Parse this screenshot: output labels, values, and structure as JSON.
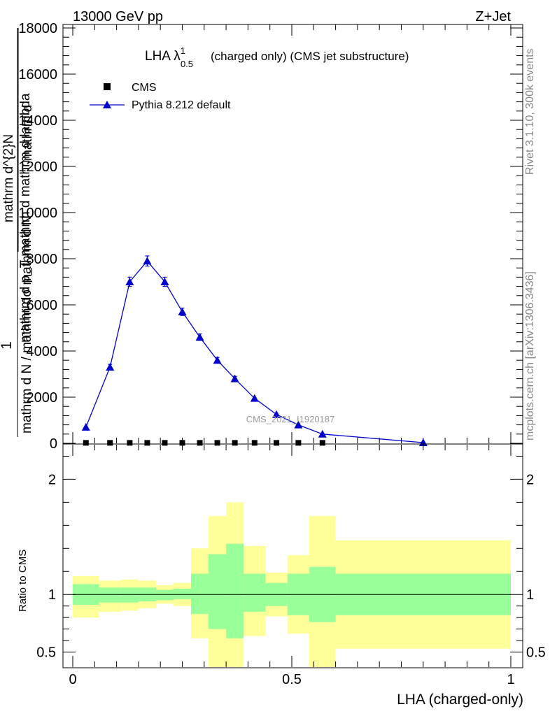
{
  "header": {
    "left": "13000 GeV pp",
    "right": "Z+Jet"
  },
  "side_labels": {
    "rivet": "Rivet 3.1.10,  300k events",
    "mcplots": "mcplots.cern.ch [arXiv:1306.3436]"
  },
  "colors": {
    "mc": "#0000cc",
    "data": "#000000",
    "band_inner": "#99ff99",
    "band_outer": "#ffff99"
  },
  "chart_data": [
    {
      "type": "line",
      "title_main": "LHA λ",
      "title_sup": "1",
      "title_sub": "0.5",
      "title_rest": "(charged only) (CMS jet substructure)",
      "watermark": "CMS_2021_I1920187",
      "ylabel_numerator": "1",
      "ylabel_denominator": "mathrm d N / mathrm dσ mathrm d N",
      "ylabel_stack": [
        "mathrm d",
        "mathrm d^{2}N",
        "mathrm d p_T mathrm d \\mathrm d\\lambda"
      ],
      "ylabel_lines": [
        "mathrm d",
        "mathrm d^{2}N",
        "mathrm d p_T mathrm d mathrm d lambda"
      ],
      "ylim": [
        0,
        18000
      ],
      "xlim": [
        0,
        1
      ],
      "yticks": [
        {
          "value": 0,
          "label": "0"
        },
        {
          "value": 2000,
          "label": "2000"
        },
        {
          "value": 4000,
          "label": "4000"
        },
        {
          "value": 6000,
          "label": "6000"
        },
        {
          "value": 8000,
          "label": "8000"
        },
        {
          "value": 10000,
          "label": "10000"
        },
        {
          "value": 12000,
          "label": "12000"
        },
        {
          "value": 14000,
          "label": "14000"
        },
        {
          "value": 16000,
          "label": "16000"
        },
        {
          "value": 18000,
          "label": "18000"
        }
      ],
      "legend": [
        {
          "name": "CMS",
          "marker": "square"
        },
        {
          "name": "Pythia 8.212 default",
          "marker": "triangle"
        }
      ],
      "series": [
        {
          "name": "Pythia 8.212 default",
          "x": [
            0.03,
            0.085,
            0.13,
            0.17,
            0.21,
            0.25,
            0.29,
            0.33,
            0.37,
            0.415,
            0.465,
            0.515,
            0.57,
            0.8
          ],
          "y": [
            700,
            3300,
            7000,
            7900,
            7000,
            5700,
            4600,
            3600,
            2800,
            1950,
            1250,
            800,
            400,
            30
          ],
          "err": [
            0,
            120,
            200,
            220,
            200,
            160,
            140,
            120,
            100,
            0,
            0,
            0,
            0,
            0
          ]
        },
        {
          "name": "CMS",
          "x": [
            0.03,
            0.085,
            0.13,
            0.17,
            0.21,
            0.25,
            0.29,
            0.33,
            0.37,
            0.415,
            0.465,
            0.515,
            0.57
          ],
          "y": [
            20,
            20,
            20,
            20,
            20,
            20,
            20,
            20,
            20,
            20,
            20,
            20,
            20
          ]
        }
      ]
    },
    {
      "type": "area",
      "ylabel": "Ratio to CMS",
      "xlabel": "LHA (charged-only)",
      "ylim": [
        0.37,
        2.3
      ],
      "xlim": [
        0,
        1
      ],
      "xticks": [
        {
          "value": 0,
          "label": "0"
        },
        {
          "value": 0.5,
          "label": "0.5"
        },
        {
          "value": 1,
          "label": "1"
        }
      ],
      "yticks": [
        {
          "value": 0.5,
          "label": "0.5"
        },
        {
          "value": 1,
          "label": "1"
        },
        {
          "value": 2,
          "label": "2"
        }
      ],
      "bands": [
        {
          "x0": 0.0,
          "x1": 0.06,
          "in_lo": 0.91,
          "in_hi": 1.09,
          "out_lo": 0.8,
          "out_hi": 1.16
        },
        {
          "x0": 0.06,
          "x1": 0.11,
          "in_lo": 0.93,
          "in_hi": 1.06,
          "out_lo": 0.85,
          "out_hi": 1.12
        },
        {
          "x0": 0.11,
          "x1": 0.15,
          "in_lo": 0.93,
          "in_hi": 1.06,
          "out_lo": 0.86,
          "out_hi": 1.13
        },
        {
          "x0": 0.15,
          "x1": 0.19,
          "in_lo": 0.94,
          "in_hi": 1.06,
          "out_lo": 0.88,
          "out_hi": 1.12
        },
        {
          "x0": 0.19,
          "x1": 0.23,
          "in_lo": 0.95,
          "in_hi": 1.04,
          "out_lo": 0.92,
          "out_hi": 1.08
        },
        {
          "x0": 0.23,
          "x1": 0.27,
          "in_lo": 0.96,
          "in_hi": 1.05,
          "out_lo": 0.9,
          "out_hi": 1.1
        },
        {
          "x0": 0.27,
          "x1": 0.31,
          "in_lo": 0.83,
          "in_hi": 1.18,
          "out_lo": 0.62,
          "out_hi": 1.4
        },
        {
          "x0": 0.31,
          "x1": 0.35,
          "in_lo": 0.7,
          "in_hi": 1.35,
          "out_lo": 0.3,
          "out_hi": 1.68
        },
        {
          "x0": 0.35,
          "x1": 0.39,
          "in_lo": 0.62,
          "in_hi": 1.44,
          "out_lo": 0.3,
          "out_hi": 1.8
        },
        {
          "x0": 0.39,
          "x1": 0.44,
          "in_lo": 0.85,
          "in_hi": 1.18,
          "out_lo": 0.64,
          "out_hi": 1.42
        },
        {
          "x0": 0.44,
          "x1": 0.49,
          "in_lo": 0.9,
          "in_hi": 1.1,
          "out_lo": 0.81,
          "out_hi": 1.19
        },
        {
          "x0": 0.49,
          "x1": 0.54,
          "in_lo": 0.82,
          "in_hi": 1.18,
          "out_lo": 0.66,
          "out_hi": 1.34
        },
        {
          "x0": 0.54,
          "x1": 0.6,
          "in_lo": 0.76,
          "in_hi": 1.24,
          "out_lo": 0.3,
          "out_hi": 1.68
        },
        {
          "x0": 0.6,
          "x1": 1.0,
          "in_lo": 0.82,
          "in_hi": 1.18,
          "out_lo": 0.53,
          "out_hi": 1.47
        }
      ]
    }
  ]
}
